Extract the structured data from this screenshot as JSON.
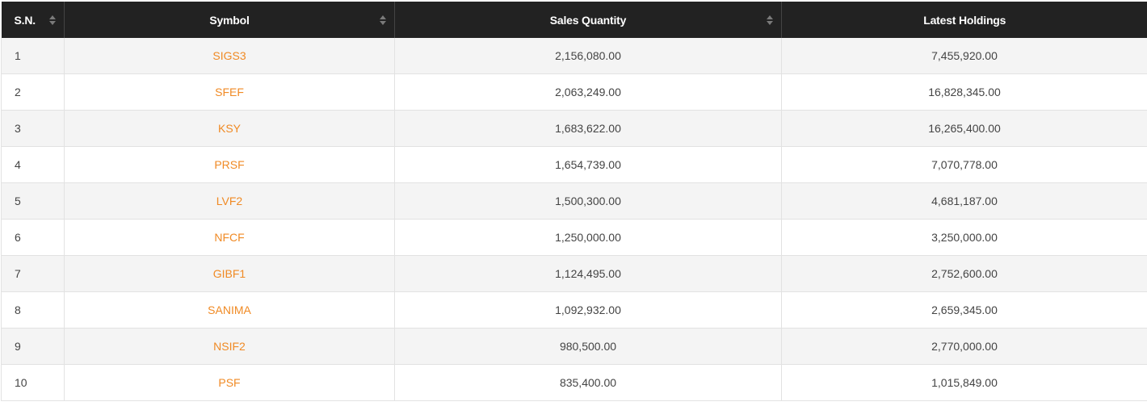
{
  "table": {
    "headers": {
      "sn": "S.N.",
      "symbol": "Symbol",
      "sales_quantity": "Sales Quantity",
      "latest_holdings": "Latest Holdings"
    },
    "accent_color": "#f08a24",
    "rows": [
      {
        "sn": "1",
        "symbol": "SIGS3",
        "sales_quantity": "2,156,080.00",
        "latest_holdings": "7,455,920.00"
      },
      {
        "sn": "2",
        "symbol": "SFEF",
        "sales_quantity": "2,063,249.00",
        "latest_holdings": "16,828,345.00"
      },
      {
        "sn": "3",
        "symbol": "KSY",
        "sales_quantity": "1,683,622.00",
        "latest_holdings": "16,265,400.00"
      },
      {
        "sn": "4",
        "symbol": "PRSF",
        "sales_quantity": "1,654,739.00",
        "latest_holdings": "7,070,778.00"
      },
      {
        "sn": "5",
        "symbol": "LVF2",
        "sales_quantity": "1,500,300.00",
        "latest_holdings": "4,681,187.00"
      },
      {
        "sn": "6",
        "symbol": "NFCF",
        "sales_quantity": "1,250,000.00",
        "latest_holdings": "3,250,000.00"
      },
      {
        "sn": "7",
        "symbol": "GIBF1",
        "sales_quantity": "1,124,495.00",
        "latest_holdings": "2,752,600.00"
      },
      {
        "sn": "8",
        "symbol": "SANIMA",
        "sales_quantity": "1,092,932.00",
        "latest_holdings": "2,659,345.00"
      },
      {
        "sn": "9",
        "symbol": "NSIF2",
        "sales_quantity": "980,500.00",
        "latest_holdings": "2,770,000.00"
      },
      {
        "sn": "10",
        "symbol": "PSF",
        "sales_quantity": "835,400.00",
        "latest_holdings": "1,015,849.00"
      }
    ]
  }
}
